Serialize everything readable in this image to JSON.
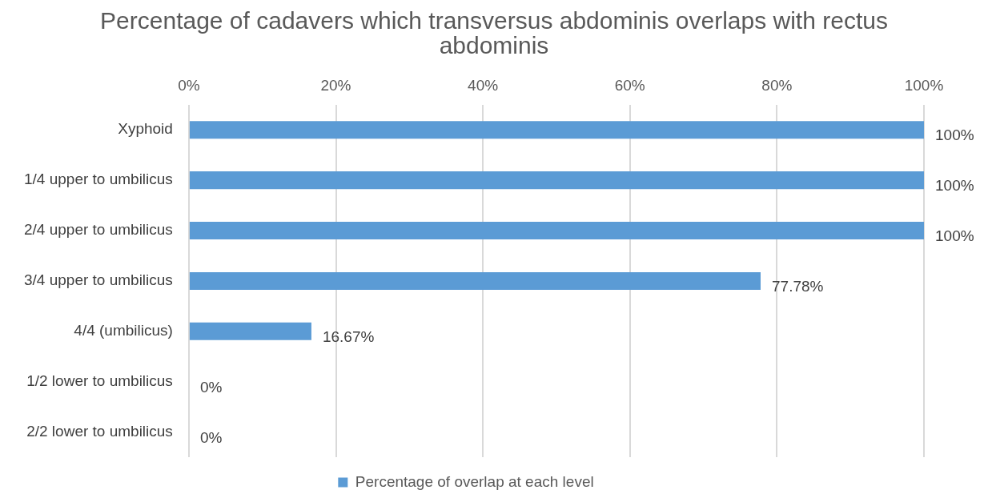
{
  "chart_data": {
    "type": "bar",
    "orientation": "horizontal",
    "title": "Percentage of cadavers which transversus abdominis overlaps with rectus abdominis",
    "categories": [
      "Xyphoid",
      "1/4 upper to umbilicus",
      "2/4 upper to umbilicus",
      "3/4 upper to umbilicus",
      "4/4 (umbilicus)",
      "1/2 lower to umbilicus",
      "2/2 lower to umbilicus"
    ],
    "series": [
      {
        "name": "Percentage of overlap at each level",
        "color": "#5b9bd5",
        "values": [
          100,
          100,
          100,
          77.78,
          16.67,
          0,
          0
        ],
        "value_labels": [
          "100%",
          "100%",
          "100%",
          "77.78%",
          "16.67%",
          "0%",
          "0%"
        ]
      }
    ],
    "xlim": [
      0,
      100
    ],
    "xticks": [
      {
        "value": 0,
        "label": "0%"
      },
      {
        "value": 20,
        "label": "20%"
      },
      {
        "value": 40,
        "label": "40%"
      },
      {
        "value": 60,
        "label": "60%"
      },
      {
        "value": 80,
        "label": "80%"
      },
      {
        "value": 100,
        "label": "100%"
      }
    ],
    "grid": "x",
    "legend": "bottom"
  }
}
